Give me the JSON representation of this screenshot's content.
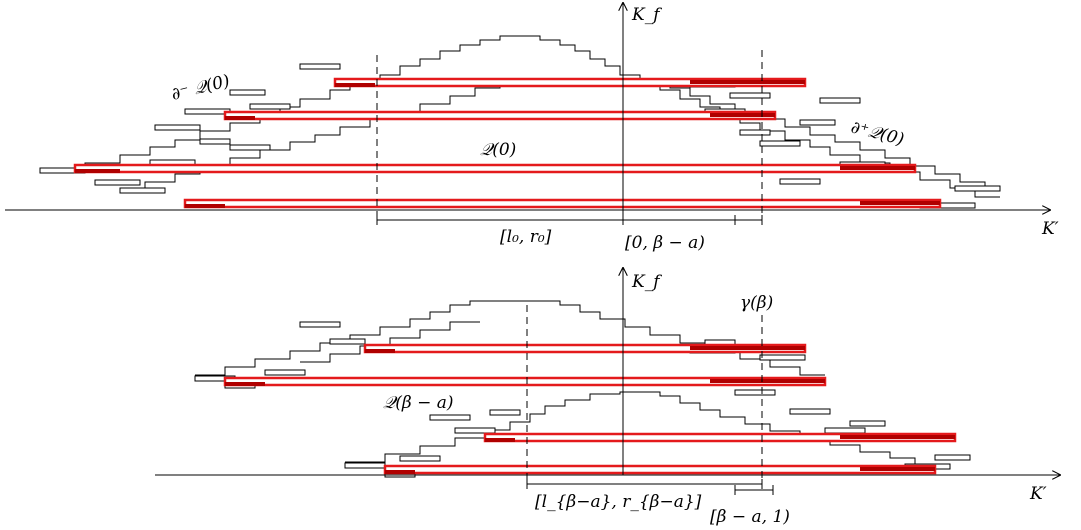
{
  "labels": {
    "top_axis_y": "K_f",
    "top_axis_x": "K′",
    "boundary_minus": "∂⁻ 𝒬(0)",
    "boundary_plus": "∂⁺𝒬(0)",
    "q_zero": "𝒬(0)",
    "interval_l0_r0": "[l₀, r₀]",
    "interval_0_beta_a": "[0, β − a)",
    "bottom_axis_y": "K_f",
    "bottom_axis_x": "K′",
    "gamma_beta": "γ(β)",
    "q_beta_a": "𝒬(β − a)",
    "interval_lbeta_rbeta": "[l_{β−a}, r_{β−a}]",
    "interval_beta_a_1": "[β − a, 1)"
  },
  "colors": {
    "highlight": "#e41a1c",
    "highlight_dark": "#b00000",
    "ink": "#000000"
  }
}
